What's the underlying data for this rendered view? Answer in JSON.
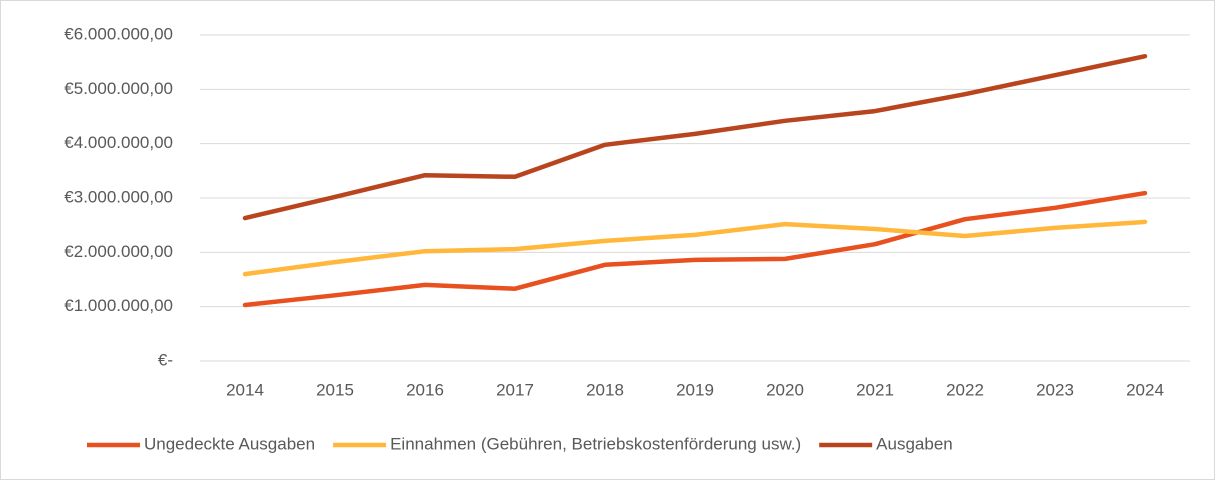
{
  "chart_data": {
    "type": "line",
    "categories": [
      "2014",
      "2015",
      "2016",
      "2017",
      "2018",
      "2019",
      "2020",
      "2021",
      "2022",
      "2023",
      "2024"
    ],
    "series": [
      {
        "name": "Ungedeckte Ausgaben",
        "color": "#e8501f",
        "values": [
          1030000,
          1210000,
          1400000,
          1330000,
          1770000,
          1860000,
          1880000,
          2150000,
          2610000,
          2820000,
          3090000
        ]
      },
      {
        "name": "Einnahmen (Gebühren, Betriebskostenförderung usw.)",
        "color": "#ffb83b",
        "values": [
          1600000,
          1820000,
          2020000,
          2060000,
          2210000,
          2320000,
          2520000,
          2430000,
          2300000,
          2450000,
          2560000
        ]
      },
      {
        "name": "Ausgaben",
        "color": "#b9451f",
        "values": [
          2630000,
          3020000,
          3420000,
          3390000,
          3980000,
          4180000,
          4420000,
          4600000,
          4910000,
          5260000,
          5610000
        ]
      }
    ],
    "ylim": [
      0,
      6000000
    ],
    "yticks": [
      {
        "value": 0,
        "label": "€-"
      },
      {
        "value": 1000000,
        "label": "€1.000.000,00"
      },
      {
        "value": 2000000,
        "label": "€2.000.000,00"
      },
      {
        "value": 3000000,
        "label": "€3.000.000,00"
      },
      {
        "value": 4000000,
        "label": "€4.000.000,00"
      },
      {
        "value": 5000000,
        "label": "€5.000.000,00"
      },
      {
        "value": 6000000,
        "label": "€6.000.000,00"
      }
    ],
    "grid": true,
    "legend": "bottom"
  }
}
